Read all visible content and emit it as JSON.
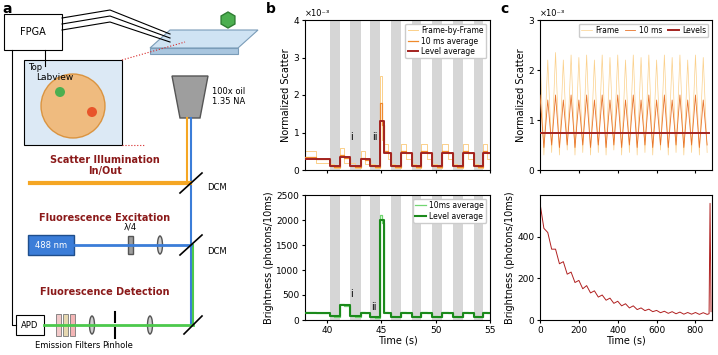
{
  "panel_labels": [
    "a",
    "b",
    "c"
  ],
  "diagram": {
    "fpga": "FPGA",
    "labview": "Labview",
    "inset": "Top",
    "objective": [
      "100x oil",
      "1.35 NA"
    ],
    "scatter": [
      "Scatter Illumination",
      "In/Out"
    ],
    "dcm": "DCM",
    "excitation": "Fluorescence Excitation",
    "laser": "488 nm",
    "waveplate": "λ/4",
    "detection": "Fluorescence Detection",
    "detector": "APD",
    "filters": "Emission Filters",
    "pinhole": "Pinhole"
  },
  "chart_data": [
    {
      "type": "line",
      "ylabel": "Normalized Scatter",
      "y_multiplier": "×10⁻³",
      "xlim": [
        38,
        55
      ],
      "xticks": [
        40,
        45,
        50,
        55
      ],
      "ylim": [
        0,
        4
      ],
      "yticks": [
        0,
        1,
        2,
        3,
        4
      ],
      "tick_labels": "y",
      "legend": "upper right",
      "shaded": [
        [
          40.3,
          41.2
        ],
        [
          42.1,
          43.1
        ],
        [
          44.0,
          44.9
        ],
        [
          45.9,
          46.8
        ],
        [
          47.8,
          48.7
        ],
        [
          49.7,
          50.6
        ],
        [
          51.6,
          52.5
        ],
        [
          53.5,
          54.4
        ]
      ],
      "annotations": [
        {
          "text": "i",
          "x": 42.3,
          "y": 0.75
        },
        {
          "text": "ii",
          "x": 44.4,
          "y": 0.75
        }
      ],
      "series": [
        {
          "name": "Frame-by-Frame",
          "color": "#fbd08a",
          "line_style": "steps",
          "x": [
            38,
            39,
            40.3,
            40.7,
            41.2,
            41.6,
            42.1,
            42.6,
            43.1,
            43.5,
            44.0,
            44.4,
            44.9,
            45.05,
            45.3,
            45.6,
            45.9,
            46.3,
            46.8,
            47.3,
            47.8,
            48.2,
            48.7,
            49.2,
            49.7,
            50.1,
            50.6,
            51.1,
            51.6,
            52.0,
            52.5,
            53.0,
            53.5,
            53.9,
            54.4,
            54.7,
            55
          ],
          "values": [
            0.5,
            0.2,
            0.15,
            0.05,
            0.6,
            0.2,
            0.2,
            0.05,
            0.5,
            0.15,
            0.15,
            0.05,
            2.5,
            0.8,
            0.7,
            0.3,
            0.15,
            0.05,
            0.7,
            0.3,
            0.15,
            0.05,
            0.7,
            0.3,
            0.15,
            0.05,
            0.7,
            0.3,
            0.15,
            0.05,
            0.7,
            0.3,
            0.15,
            0.05,
            0.7,
            0.3,
            0.3
          ]
        },
        {
          "name": "10 ms average",
          "color": "#ef8a2c",
          "line_style": "steps",
          "x": [
            38,
            39,
            40.3,
            40.7,
            41.2,
            41.6,
            42.1,
            42.6,
            43.1,
            43.5,
            44.0,
            44.4,
            44.9,
            45.05,
            45.3,
            45.6,
            45.9,
            46.3,
            46.8,
            47.3,
            47.8,
            48.2,
            48.7,
            49.2,
            49.7,
            50.1,
            50.6,
            51.1,
            51.6,
            52.0,
            52.5,
            53.0,
            53.5,
            53.9,
            54.4,
            54.7,
            55
          ],
          "values": [
            0.35,
            0.3,
            0.12,
            0.08,
            0.4,
            0.33,
            0.12,
            0.08,
            0.33,
            0.28,
            0.12,
            0.08,
            1.8,
            1.2,
            0.5,
            0.45,
            0.12,
            0.08,
            0.5,
            0.45,
            0.12,
            0.08,
            0.5,
            0.45,
            0.12,
            0.08,
            0.5,
            0.45,
            0.12,
            0.08,
            0.5,
            0.45,
            0.12,
            0.08,
            0.5,
            0.45,
            0.45
          ]
        },
        {
          "name": "Level average",
          "color": "#a3231f",
          "line_style": "steps",
          "x": [
            38,
            40.3,
            41.2,
            42.1,
            43.1,
            44.0,
            44.9,
            45.3,
            45.9,
            46.8,
            47.8,
            48.7,
            49.7,
            50.6,
            51.6,
            52.5,
            53.5,
            54.4,
            55
          ],
          "values": [
            0.3,
            0.1,
            0.35,
            0.1,
            0.3,
            0.1,
            1.3,
            0.45,
            0.1,
            0.45,
            0.1,
            0.45,
            0.1,
            0.45,
            0.1,
            0.45,
            0.1,
            0.45,
            0.45
          ]
        }
      ]
    },
    {
      "type": "line",
      "ylabel": "Brightness (photons/10ms)",
      "xlabel": "Time (s)",
      "xlim": [
        38,
        55
      ],
      "xticks": [
        40,
        45,
        50,
        55
      ],
      "ylim": [
        0,
        2500
      ],
      "yticks": [
        0,
        500,
        1000,
        1500,
        2000,
        2500
      ],
      "legend": "upper right",
      "shaded": [
        [
          40.3,
          41.2
        ],
        [
          42.1,
          43.1
        ],
        [
          44.0,
          44.9
        ],
        [
          45.9,
          46.8
        ],
        [
          47.8,
          48.7
        ],
        [
          49.7,
          50.6
        ],
        [
          51.6,
          52.5
        ],
        [
          53.5,
          54.4
        ]
      ],
      "annotations": [
        {
          "text": "i",
          "x": 42.3,
          "y": 420
        },
        {
          "text": "ii",
          "x": 44.3,
          "y": 170
        }
      ],
      "series": [
        {
          "name": "10ms average",
          "color": "#72d672",
          "line_style": "steps",
          "x": [
            38,
            39,
            40.3,
            40.7,
            41.2,
            41.6,
            42.1,
            42.6,
            43.1,
            43.5,
            44.0,
            44.4,
            44.9,
            45.05,
            45.3,
            45.6,
            45.9,
            46.3,
            46.8,
            47.3,
            47.8,
            48.2,
            48.7,
            49.2,
            49.7,
            50.1,
            50.6,
            51.1,
            51.6,
            52.0,
            52.5,
            53.0,
            53.5,
            53.9,
            54.4,
            54.7,
            55
          ],
          "values": [
            160,
            140,
            90,
            70,
            320,
            290,
            90,
            70,
            160,
            140,
            70,
            50,
            2100,
            1950,
            160,
            140,
            80,
            60,
            160,
            140,
            80,
            60,
            160,
            140,
            80,
            60,
            160,
            140,
            80,
            60,
            160,
            140,
            80,
            60,
            160,
            140,
            140
          ]
        },
        {
          "name": "Level average",
          "color": "#1b8a1b",
          "line_style": "steps",
          "x": [
            38,
            40.3,
            41.2,
            42.1,
            43.1,
            44.0,
            44.9,
            45.3,
            45.9,
            46.8,
            47.8,
            48.7,
            49.7,
            50.6,
            51.6,
            52.5,
            53.5,
            54.4,
            55
          ],
          "values": [
            150,
            80,
            300,
            80,
            150,
            60,
            2000,
            150,
            70,
            150,
            70,
            150,
            70,
            150,
            70,
            150,
            70,
            150,
            150
          ]
        }
      ]
    },
    {
      "type": "line",
      "ylabel": "Normalized Scatter",
      "y_multiplier": "×10⁻³",
      "xlim": [
        0,
        885
      ],
      "xticks": [
        0,
        200,
        400,
        600,
        800
      ],
      "ylim": [
        0,
        3
      ],
      "yticks": [
        0,
        1,
        2,
        3
      ],
      "tick_labels": "y",
      "legend": "upper right",
      "series": [
        {
          "name": "Frame",
          "color": "#fbd08a",
          "line_style": "solid",
          "x": [
            0,
            20,
            40,
            60,
            80,
            100,
            120,
            140,
            160,
            180,
            200,
            220,
            240,
            260,
            280,
            300,
            320,
            340,
            360,
            380,
            400,
            420,
            440,
            460,
            480,
            500,
            520,
            540,
            560,
            580,
            600,
            620,
            640,
            660,
            680,
            700,
            720,
            740,
            760,
            780,
            800,
            820,
            840,
            860
          ],
          "values": [
            2.3,
            0.3,
            2.2,
            0.35,
            2.35,
            0.3,
            2.2,
            0.4,
            2.3,
            0.3,
            2.25,
            0.35,
            2.3,
            0.3,
            2.2,
            0.35,
            2.3,
            0.3,
            2.25,
            0.4,
            2.3,
            0.3,
            2.2,
            0.35,
            2.3,
            0.3,
            2.25,
            0.35,
            2.3,
            0.3,
            2.2,
            0.4,
            2.3,
            0.3,
            2.25,
            0.35,
            2.3,
            0.3,
            2.2,
            0.35,
            2.3,
            0.3,
            2.25,
            0.35
          ]
        },
        {
          "name": "10 ms",
          "color": "#e8742a",
          "line_style": "solid",
          "x": [
            0,
            20,
            40,
            60,
            80,
            100,
            120,
            140,
            160,
            180,
            200,
            220,
            240,
            260,
            280,
            300,
            320,
            340,
            360,
            380,
            400,
            420,
            440,
            460,
            480,
            500,
            520,
            540,
            560,
            580,
            600,
            620,
            640,
            660,
            680,
            700,
            720,
            740,
            760,
            780,
            800,
            820,
            840,
            860
          ],
          "values": [
            1.5,
            0.45,
            1.4,
            0.5,
            1.5,
            0.45,
            1.4,
            0.5,
            1.5,
            0.45,
            1.4,
            0.5,
            1.5,
            0.45,
            1.4,
            0.5,
            1.5,
            0.45,
            1.4,
            0.5,
            1.5,
            0.45,
            1.4,
            0.5,
            1.5,
            0.45,
            1.4,
            0.5,
            1.5,
            0.45,
            1.4,
            0.5,
            1.5,
            0.45,
            1.4,
            0.5,
            1.5,
            0.45,
            1.4,
            0.5,
            1.5,
            0.45,
            1.4,
            0.5
          ]
        },
        {
          "name": "Levels",
          "color": "#a3231f",
          "line_style": "steps",
          "x": [
            0,
            870
          ],
          "values": [
            0.75,
            0.75
          ]
        }
      ]
    },
    {
      "type": "line",
      "ylabel": "Brightness (photons/10ms)",
      "xlabel": "Time (s)",
      "xlim": [
        0,
        885
      ],
      "xticks": [
        0,
        200,
        400,
        600,
        800
      ],
      "ylim": [
        0,
        600
      ],
      "yticks": [
        0,
        200,
        400
      ],
      "series": [
        {
          "color": "#b02020",
          "line_style": "solid",
          "x": [
            0,
            20,
            40,
            60,
            80,
            100,
            120,
            140,
            160,
            180,
            200,
            220,
            240,
            260,
            280,
            300,
            320,
            340,
            360,
            380,
            400,
            420,
            440,
            460,
            480,
            500,
            520,
            540,
            560,
            580,
            600,
            620,
            640,
            660,
            680,
            700,
            720,
            740,
            760,
            780,
            800,
            820,
            840,
            860,
            870,
            875,
            880
          ],
          "values": [
            560,
            440,
            420,
            340,
            340,
            270,
            280,
            220,
            230,
            180,
            190,
            150,
            165,
            130,
            140,
            110,
            120,
            95,
            105,
            80,
            90,
            68,
            78,
            58,
            68,
            50,
            58,
            45,
            52,
            40,
            46,
            35,
            42,
            32,
            40,
            30,
            38,
            28,
            36,
            28,
            36,
            27,
            35,
            27,
            30,
            560,
            40
          ]
        }
      ]
    }
  ]
}
